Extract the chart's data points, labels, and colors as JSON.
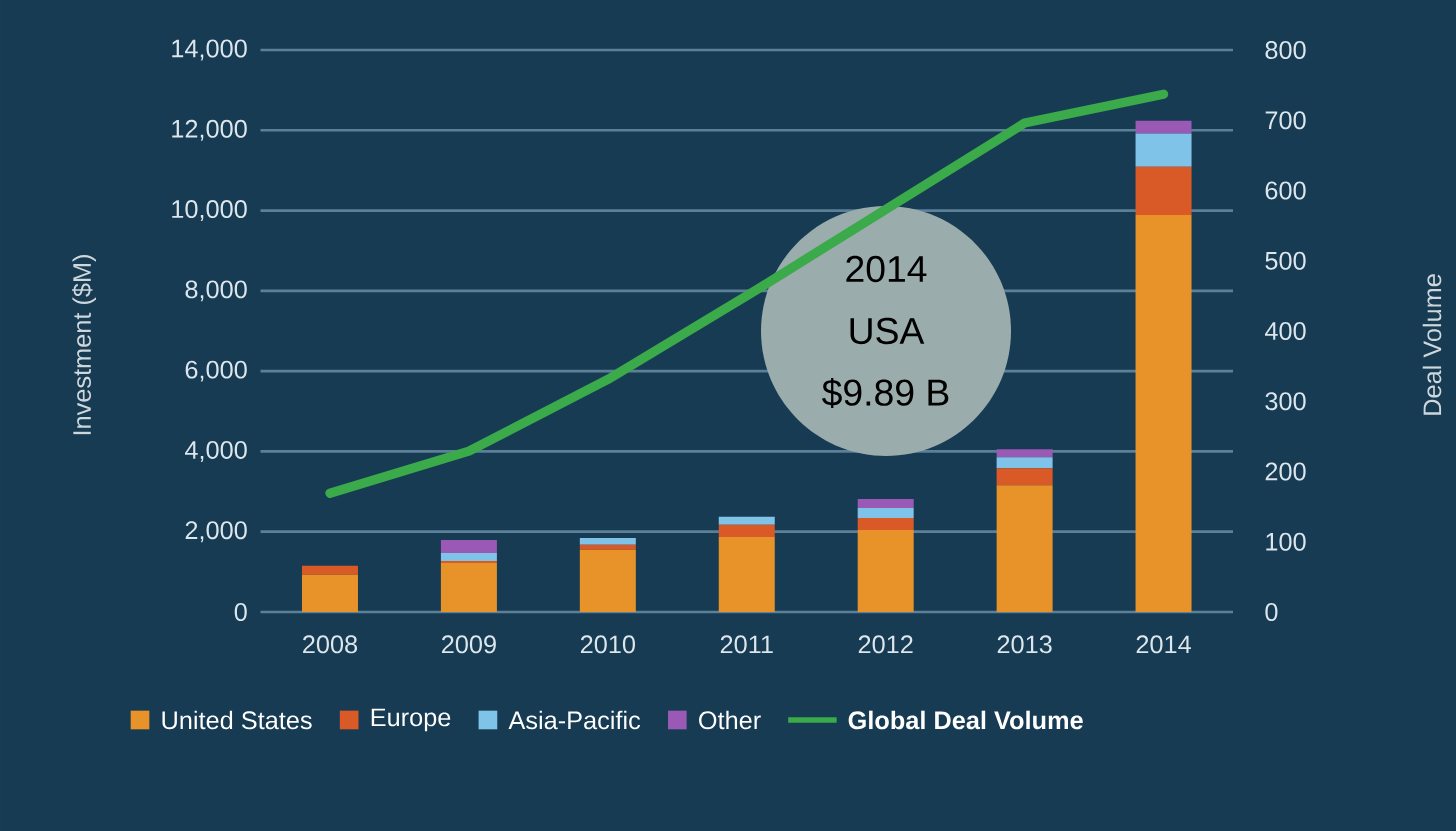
{
  "chart_data": {
    "type": "bar",
    "stacked": true,
    "ylabel": "Investment ($M)",
    "y2label": "Deal Volume",
    "categories": [
      "2008",
      "2009",
      "2010",
      "2011",
      "2012",
      "2013",
      "2014"
    ],
    "series": [
      {
        "name": "United States",
        "color": "#e8922a",
        "values": [
          925,
          1220,
          1550,
          1870,
          2040,
          3160,
          9890
        ]
      },
      {
        "name": "Europe",
        "color": "#d95a26",
        "values": [
          225,
          50,
          125,
          300,
          300,
          420,
          1200
        ]
      },
      {
        "name": "Asia-Pacific",
        "color": "#7fc3e8",
        "values": [
          0,
          200,
          165,
          200,
          250,
          275,
          830
        ]
      },
      {
        "name": "Other",
        "color": "#9b59b6",
        "values": [
          0,
          325,
          0,
          0,
          225,
          200,
          320
        ]
      },
      {
        "name": "Global Deal Volume",
        "type": "line",
        "axis": "y2",
        "color": "#3aaa4a",
        "values": [
          169,
          229,
          331,
          450,
          573,
          696,
          737
        ]
      }
    ],
    "ylim": [
      0,
      14000
    ],
    "yticks": [
      0,
      {
        "value": 2000,
        "label": "2,000"
      },
      {
        "value": 4000,
        "label": "4,000"
      },
      {
        "value": 6000,
        "label": "6,000"
      },
      {
        "value": 8000,
        "label": "8,000"
      },
      {
        "value": 10000,
        "label": "10,000"
      },
      {
        "value": 12000,
        "label": "12,000"
      },
      {
        "value": 14000,
        "label": "14,000"
      }
    ],
    "y2lim": [
      0,
      800
    ],
    "y2ticks": [
      0,
      100,
      200,
      300,
      400,
      500,
      600,
      700,
      800
    ],
    "grid": "y",
    "legend": "bottom",
    "annotations": [
      "2014",
      "USA",
      "$9.89 B"
    ]
  }
}
